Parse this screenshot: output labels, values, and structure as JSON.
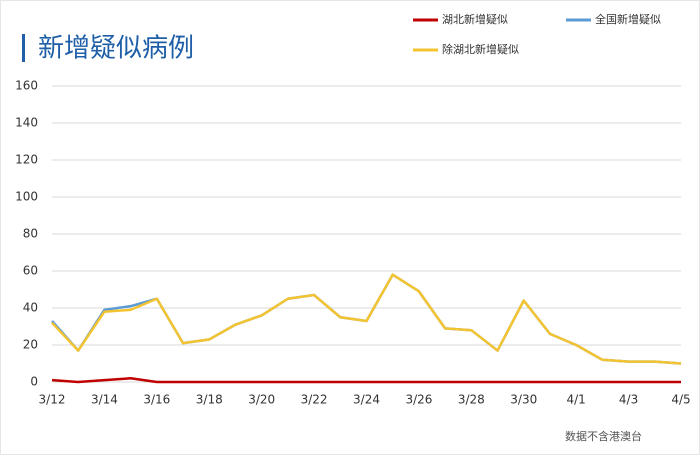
{
  "chart_data": {
    "type": "line",
    "title": "新增疑似病例",
    "categories": [
      "3/12",
      null,
      "3/14",
      null,
      "3/16",
      null,
      "3/18",
      null,
      "3/20",
      null,
      "3/22",
      null,
      "3/24",
      null,
      "3/26",
      null,
      "3/28",
      null,
      "3/30",
      null,
      "4/1",
      null,
      "4/3",
      null,
      "4/5"
    ],
    "series": [
      {
        "name": "湖北新增疑似",
        "color": "#c00000",
        "values": [
          1,
          0,
          1,
          2,
          0,
          0,
          0,
          0,
          0,
          0,
          0,
          0,
          0,
          0,
          0,
          0,
          0,
          0,
          0,
          0,
          0,
          0,
          0,
          0,
          0
        ]
      },
      {
        "name": "全国新增疑似",
        "color": "#5b9bd5",
        "values": [
          33,
          17,
          39,
          41,
          45,
          21,
          23,
          31,
          36,
          45,
          47,
          35,
          33,
          58,
          49,
          29,
          28,
          17,
          44,
          26,
          20,
          12,
          11,
          11,
          10
        ]
      },
      {
        "name": "除湖北新增疑似",
        "color": "#f4c430",
        "values": [
          32,
          17,
          38,
          39,
          45,
          21,
          23,
          31,
          36,
          45,
          47,
          35,
          33,
          58,
          49,
          29,
          28,
          17,
          44,
          26,
          20,
          12,
          11,
          11,
          10
        ]
      }
    ],
    "ylim": [
      0,
      160
    ],
    "yticks": [
      0,
      20,
      40,
      60,
      80,
      100,
      120,
      140,
      160
    ],
    "grid": true,
    "legend_position": "top-right",
    "note": "数据不含港澳台"
  }
}
